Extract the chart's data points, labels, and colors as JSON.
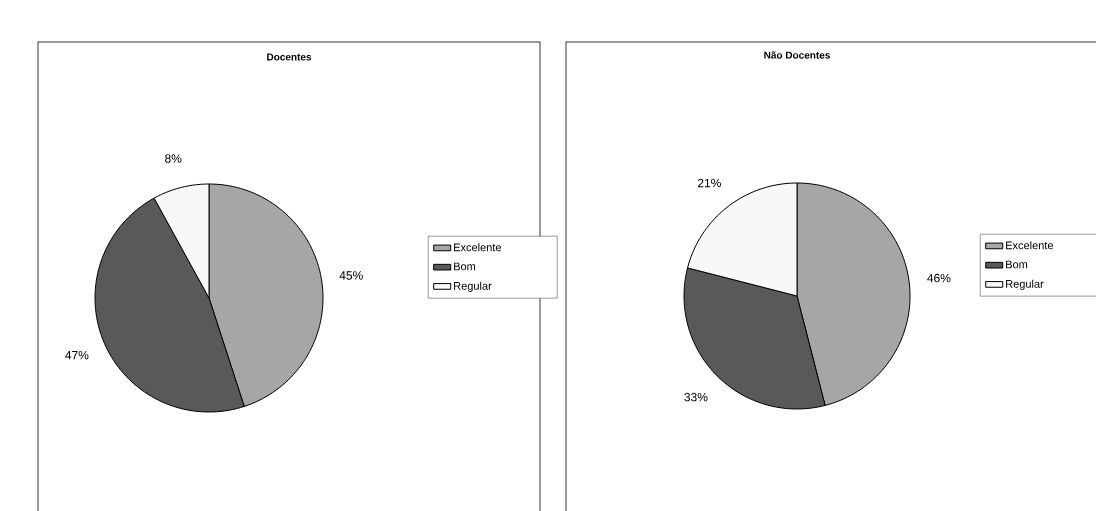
{
  "chart_data": [
    {
      "type": "pie",
      "title": "Docentes",
      "categories": [
        "Excelente",
        "Bom",
        "Regular"
      ],
      "values": [
        45,
        47,
        8
      ],
      "colors": [
        "#a6a6a6",
        "#595959",
        "#f8f8f8"
      ],
      "value_labels": [
        "45%",
        "47%",
        "8%"
      ],
      "legend": "right"
    },
    {
      "type": "pie",
      "title": "Não Docentes",
      "categories": [
        "Excelente",
        "Bom",
        "Regular"
      ],
      "values": [
        46,
        33,
        21
      ],
      "colors": [
        "#a6a6a6",
        "#595959",
        "#f8f8f8"
      ],
      "value_labels": [
        "46%",
        "33%",
        "21%"
      ],
      "legend": "right"
    }
  ]
}
